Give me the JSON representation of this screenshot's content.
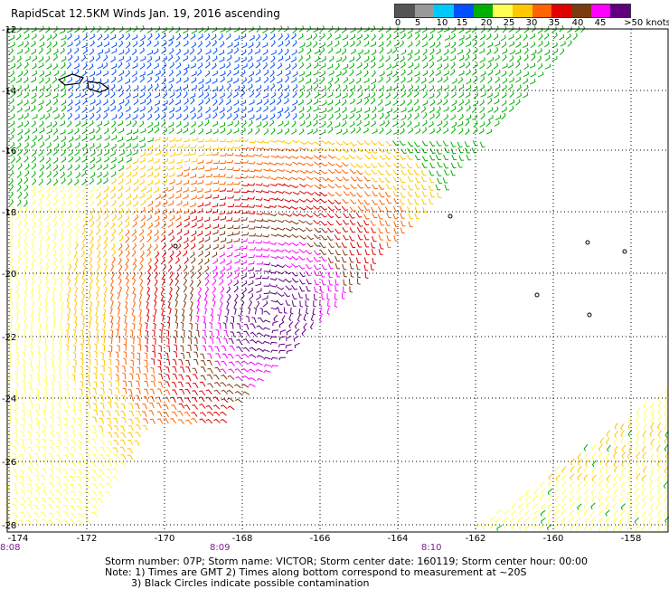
{
  "title": "RapidScat 12.5KM Winds Jan. 19, 2016 ascending",
  "legend": {
    "labels": [
      "0",
      "5",
      "10",
      "15",
      "20",
      "25",
      "30",
      "35",
      "40",
      "45",
      ">50 knots"
    ],
    "colors": [
      "#555555",
      "#999999",
      "#00c8ff",
      "#0050ff",
      "#00b000",
      "#ffff55",
      "#ffc800",
      "#ff6400",
      "#e00000",
      "#7a3b10",
      "#ff00ff",
      "#60007f"
    ]
  },
  "axes": {
    "x_ticks": [
      "-174",
      "-172",
      "-170",
      "-168",
      "-166",
      "-164",
      "-162",
      "-160",
      "-158"
    ],
    "y_ticks": [
      "-12",
      "-14",
      "-16",
      "-18",
      "-20",
      "-22",
      "-24",
      "-26",
      "-28"
    ]
  },
  "times": [
    "8:08",
    "8:09",
    "8:10"
  ],
  "footer": {
    "line1": "Storm number: 07P;  Storm name: VICTOR;  Storm center date: 160119;  Storm center hour: 00:00",
    "line2": "Note: 1) Times are GMT  2) Times along bottom correspond to measurement at ~20S",
    "line3": "3) Black Circles indicate possible contamination"
  }
}
